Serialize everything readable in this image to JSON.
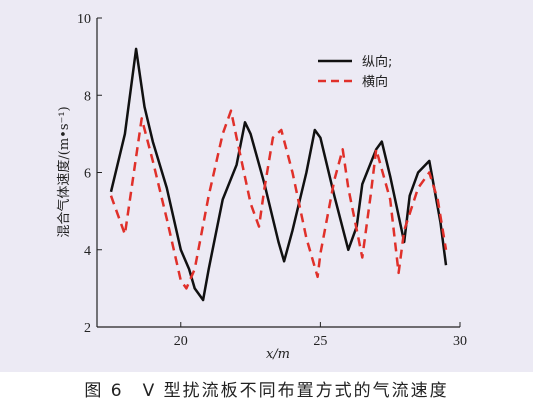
{
  "caption": "图 6　V 型扰流板不同布置方式的气流速度",
  "colors": {
    "background": "#eceaf4",
    "series_longitudinal": "#111111",
    "series_transverse": "#e0302a"
  },
  "chart_data": {
    "type": "line",
    "xlabel": "x/m",
    "ylabel": "混合气体速度/(m•s⁻¹)",
    "xlim": [
      17,
      30
    ],
    "ylim": [
      2,
      10
    ],
    "x_ticks": [
      "20",
      "25",
      "30"
    ],
    "y_ticks": [
      "2",
      "4",
      "6",
      "8",
      "10"
    ],
    "grid": false,
    "legend_position": "top-right",
    "series": [
      {
        "name": "纵向;",
        "style": "solid",
        "color": "#111111",
        "x": [
          17.5,
          18.0,
          18.4,
          18.7,
          19.0,
          19.5,
          20.0,
          20.3,
          20.5,
          20.8,
          21.0,
          21.5,
          22.0,
          22.3,
          22.5,
          23.0,
          23.5,
          23.7,
          24.0,
          24.5,
          24.8,
          25.0,
          25.5,
          26.0,
          26.3,
          26.5,
          27.0,
          27.2,
          27.5,
          28.0,
          28.2,
          28.5,
          28.9,
          29.3,
          29.5
        ],
        "y": [
          5.5,
          7.0,
          9.2,
          7.7,
          6.8,
          5.6,
          4.0,
          3.5,
          3.0,
          2.7,
          3.5,
          5.3,
          6.2,
          7.3,
          7.0,
          5.7,
          4.2,
          3.7,
          4.5,
          6.0,
          7.1,
          6.9,
          5.4,
          4.0,
          4.6,
          5.7,
          6.6,
          6.8,
          5.9,
          4.2,
          5.4,
          6.0,
          6.3,
          4.7,
          3.6
        ]
      },
      {
        "name": "横向",
        "style": "dashed",
        "color": "#e0302a",
        "x": [
          17.5,
          18.0,
          18.6,
          19.0,
          19.5,
          20.0,
          20.2,
          20.5,
          21.0,
          21.5,
          21.8,
          22.0,
          22.5,
          22.8,
          23.0,
          23.3,
          23.6,
          24.0,
          24.5,
          24.9,
          25.0,
          25.5,
          25.8,
          26.0,
          26.5,
          26.8,
          27.0,
          27.5,
          27.8,
          28.0,
          28.5,
          28.9,
          29.2,
          29.5
        ],
        "y": [
          5.4,
          4.4,
          7.4,
          6.3,
          4.8,
          3.2,
          3.0,
          3.5,
          5.4,
          7.0,
          7.6,
          6.9,
          5.2,
          4.6,
          5.6,
          6.9,
          7.1,
          6.0,
          4.3,
          3.3,
          3.9,
          5.8,
          6.6,
          5.6,
          3.8,
          5.4,
          6.6,
          5.3,
          3.4,
          4.5,
          5.6,
          6.0,
          5.3,
          4.0
        ]
      }
    ]
  }
}
